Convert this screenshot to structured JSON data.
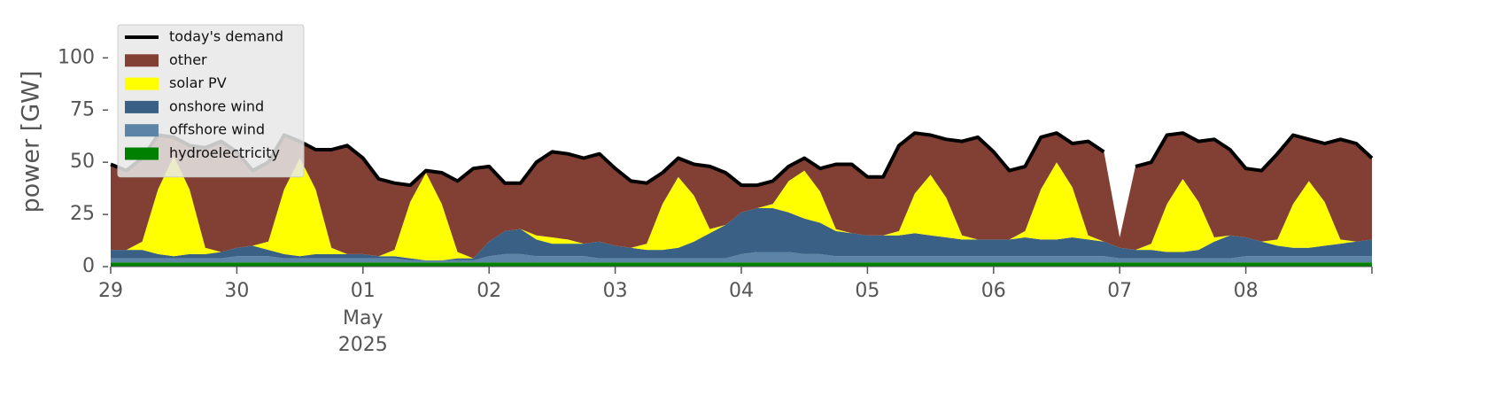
{
  "chart_data": {
    "type": "stacked_area",
    "ylabel": "power [GW]",
    "x": [
      "2025-04-29T00:00",
      "2025-04-29T03:00",
      "2025-04-29T06:00",
      "2025-04-29T09:00",
      "2025-04-29T12:00",
      "2025-04-29T15:00",
      "2025-04-29T18:00",
      "2025-04-29T21:00",
      "2025-04-30T00:00",
      "2025-04-30T03:00",
      "2025-04-30T06:00",
      "2025-04-30T09:00",
      "2025-04-30T12:00",
      "2025-04-30T15:00",
      "2025-04-30T18:00",
      "2025-04-30T21:00",
      "2025-05-01T00:00",
      "2025-05-01T03:00",
      "2025-05-01T06:00",
      "2025-05-01T09:00",
      "2025-05-01T12:00",
      "2025-05-01T15:00",
      "2025-05-01T18:00",
      "2025-05-01T21:00",
      "2025-05-02T00:00",
      "2025-05-02T03:00",
      "2025-05-02T06:00",
      "2025-05-02T09:00",
      "2025-05-02T12:00",
      "2025-05-02T15:00",
      "2025-05-02T18:00",
      "2025-05-02T21:00",
      "2025-05-03T00:00",
      "2025-05-03T03:00",
      "2025-05-03T06:00",
      "2025-05-03T09:00",
      "2025-05-03T12:00",
      "2025-05-03T15:00",
      "2025-05-03T18:00",
      "2025-05-03T21:00",
      "2025-05-04T00:00",
      "2025-05-04T03:00",
      "2025-05-04T06:00",
      "2025-05-04T09:00",
      "2025-05-04T12:00",
      "2025-05-04T15:00",
      "2025-05-04T18:00",
      "2025-05-04T21:00",
      "2025-05-05T00:00",
      "2025-05-05T03:00",
      "2025-05-05T06:00",
      "2025-05-05T09:00",
      "2025-05-05T12:00",
      "2025-05-05T15:00",
      "2025-05-05T18:00",
      "2025-05-05T21:00",
      "2025-05-06T00:00",
      "2025-05-06T03:00",
      "2025-05-06T06:00",
      "2025-05-06T09:00",
      "2025-05-06T12:00",
      "2025-05-06T15:00",
      "2025-05-06T18:00",
      "2025-05-06T21:00",
      "2025-05-07T00:00",
      "2025-05-07T03:00",
      "2025-05-07T06:00",
      "2025-05-07T09:00",
      "2025-05-07T12:00",
      "2025-05-07T15:00",
      "2025-05-07T18:00",
      "2025-05-07T21:00",
      "2025-05-08T00:00",
      "2025-05-08T03:00",
      "2025-05-08T06:00",
      "2025-05-08T09:00",
      "2025-05-08T12:00",
      "2025-05-08T15:00",
      "2025-05-08T18:00",
      "2025-05-08T21:00",
      "2025-05-09T00:00"
    ],
    "series": [
      {
        "name": "hydroelectricity",
        "color": "#008000",
        "values": [
          2,
          2,
          2,
          2,
          2,
          2,
          2,
          2,
          2,
          2,
          2,
          2,
          2,
          2,
          2,
          2,
          2,
          2,
          2,
          2,
          2,
          2,
          2,
          2,
          2,
          2,
          2,
          2,
          2,
          2,
          2,
          2,
          2,
          2,
          2,
          2,
          2,
          2,
          2,
          2,
          2,
          2,
          2,
          2,
          2,
          2,
          2,
          2,
          2,
          2,
          2,
          2,
          2,
          2,
          2,
          2,
          2,
          2,
          2,
          2,
          2,
          2,
          2,
          2,
          2,
          2,
          2,
          2,
          2,
          2,
          2,
          2,
          2,
          2,
          2,
          2,
          2,
          2,
          2,
          2,
          2
        ]
      },
      {
        "name": "offshore wind",
        "color": "#5b84a6",
        "values": [
          2,
          2,
          2,
          2,
          2,
          2,
          2,
          2,
          3,
          3,
          3,
          2,
          2,
          2,
          2,
          2,
          2,
          2,
          2,
          1,
          1,
          1,
          1,
          1,
          3,
          4,
          4,
          3,
          3,
          3,
          3,
          2,
          2,
          2,
          2,
          2,
          2,
          2,
          2,
          2,
          4,
          5,
          5,
          5,
          4,
          4,
          3,
          3,
          3,
          3,
          3,
          3,
          3,
          3,
          3,
          3,
          3,
          3,
          3,
          3,
          3,
          3,
          3,
          3,
          2,
          2,
          2,
          2,
          2,
          2,
          2,
          2,
          3,
          3,
          3,
          3,
          3,
          3,
          3,
          3,
          3
        ]
      },
      {
        "name": "onshore wind",
        "color": "#3a6185",
        "values": [
          4,
          4,
          4,
          2,
          1,
          2,
          2,
          3,
          4,
          5,
          3,
          2,
          1,
          2,
          2,
          2,
          2,
          1,
          1,
          1,
          0,
          0,
          1,
          1,
          7,
          11,
          12,
          8,
          6,
          6,
          6,
          8,
          6,
          5,
          4,
          4,
          5,
          8,
          12,
          16,
          20,
          21,
          21,
          19,
          17,
          15,
          12,
          11,
          10,
          10,
          10,
          11,
          10,
          9,
          8,
          8,
          8,
          8,
          9,
          8,
          8,
          9,
          8,
          7,
          5,
          4,
          4,
          3,
          3,
          4,
          8,
          11,
          9,
          7,
          5,
          4,
          4,
          5,
          6,
          7,
          8
        ]
      },
      {
        "name": "solar PV",
        "color": "#ffff00",
        "values": [
          0,
          0,
          4,
          31,
          48,
          31,
          3,
          0,
          0,
          0,
          4,
          31,
          47,
          31,
          3,
          0,
          0,
          0,
          3,
          27,
          42,
          27,
          3,
          0,
          0,
          0,
          0,
          2,
          3,
          2,
          0,
          0,
          0,
          0,
          3,
          22,
          34,
          22,
          2,
          0,
          0,
          0,
          2,
          15,
          23,
          15,
          1,
          0,
          0,
          0,
          2,
          19,
          29,
          19,
          2,
          0,
          0,
          0,
          3,
          24,
          37,
          24,
          2,
          0,
          0,
          0,
          3,
          23,
          35,
          23,
          2,
          0,
          0,
          0,
          3,
          21,
          32,
          21,
          2,
          0,
          0
        ]
      },
      {
        "name": "other",
        "color": "#823f33",
        "values": [
          41,
          38,
          40,
          26,
          9,
          21,
          48,
          53,
          46,
          36,
          38,
          26,
          8,
          19,
          47,
          52,
          46,
          37,
          32,
          8,
          1,
          15,
          34,
          43,
          36,
          23,
          22,
          35,
          41,
          41,
          41,
          42,
          37,
          32,
          29,
          15,
          9,
          15,
          30,
          25,
          13,
          11,
          11,
          7,
          6,
          11,
          31,
          33,
          28,
          28,
          41,
          29,
          19,
          28,
          45,
          49,
          42,
          33,
          31,
          25,
          14,
          21,
          45,
          43,
          5,
          40,
          39,
          33,
          22,
          29,
          47,
          41,
          33,
          34,
          41,
          33,
          20,
          28,
          48,
          47,
          39
        ]
      }
    ],
    "demand": {
      "name": "today's demand",
      "color": "#000000",
      "values": [
        49,
        46,
        52,
        63,
        62,
        58,
        57,
        60,
        55,
        46,
        50,
        63,
        60,
        56,
        56,
        58,
        52,
        42,
        40,
        39,
        46,
        45,
        41,
        47,
        48,
        40,
        40,
        50,
        55,
        54,
        52,
        54,
        47,
        41,
        40,
        45,
        52,
        49,
        48,
        45,
        39,
        39,
        41,
        48,
        52,
        47,
        49,
        49,
        43,
        43,
        58,
        64,
        63,
        61,
        60,
        62,
        55,
        46,
        48,
        62,
        64,
        59,
        60,
        55,
        null,
        48,
        50,
        63,
        64,
        60,
        61,
        56,
        47,
        46,
        54,
        63,
        61,
        59,
        61,
        59,
        52
      ]
    },
    "xlim": [
      "2025-04-29T00:00",
      "2025-05-09T00:00"
    ],
    "xticks": [
      {
        "value": "2025-04-29T00:00",
        "label": "29"
      },
      {
        "value": "2025-04-30T00:00",
        "label": "30"
      },
      {
        "value": "2025-05-01T00:00",
        "label": "01"
      },
      {
        "value": "2025-05-02T00:00",
        "label": "02"
      },
      {
        "value": "2025-05-03T00:00",
        "label": "03"
      },
      {
        "value": "2025-05-04T00:00",
        "label": "04"
      },
      {
        "value": "2025-05-05T00:00",
        "label": "05"
      },
      {
        "value": "2025-05-06T00:00",
        "label": "06"
      },
      {
        "value": "2025-05-07T00:00",
        "label": "07"
      },
      {
        "value": "2025-05-08T00:00",
        "label": "08"
      }
    ],
    "x_tick_sublabel": [
      "May",
      "2025"
    ],
    "ylim": [
      0,
      115
    ],
    "yticks": [
      0,
      25,
      50,
      75,
      100
    ],
    "legend": "upper left"
  }
}
